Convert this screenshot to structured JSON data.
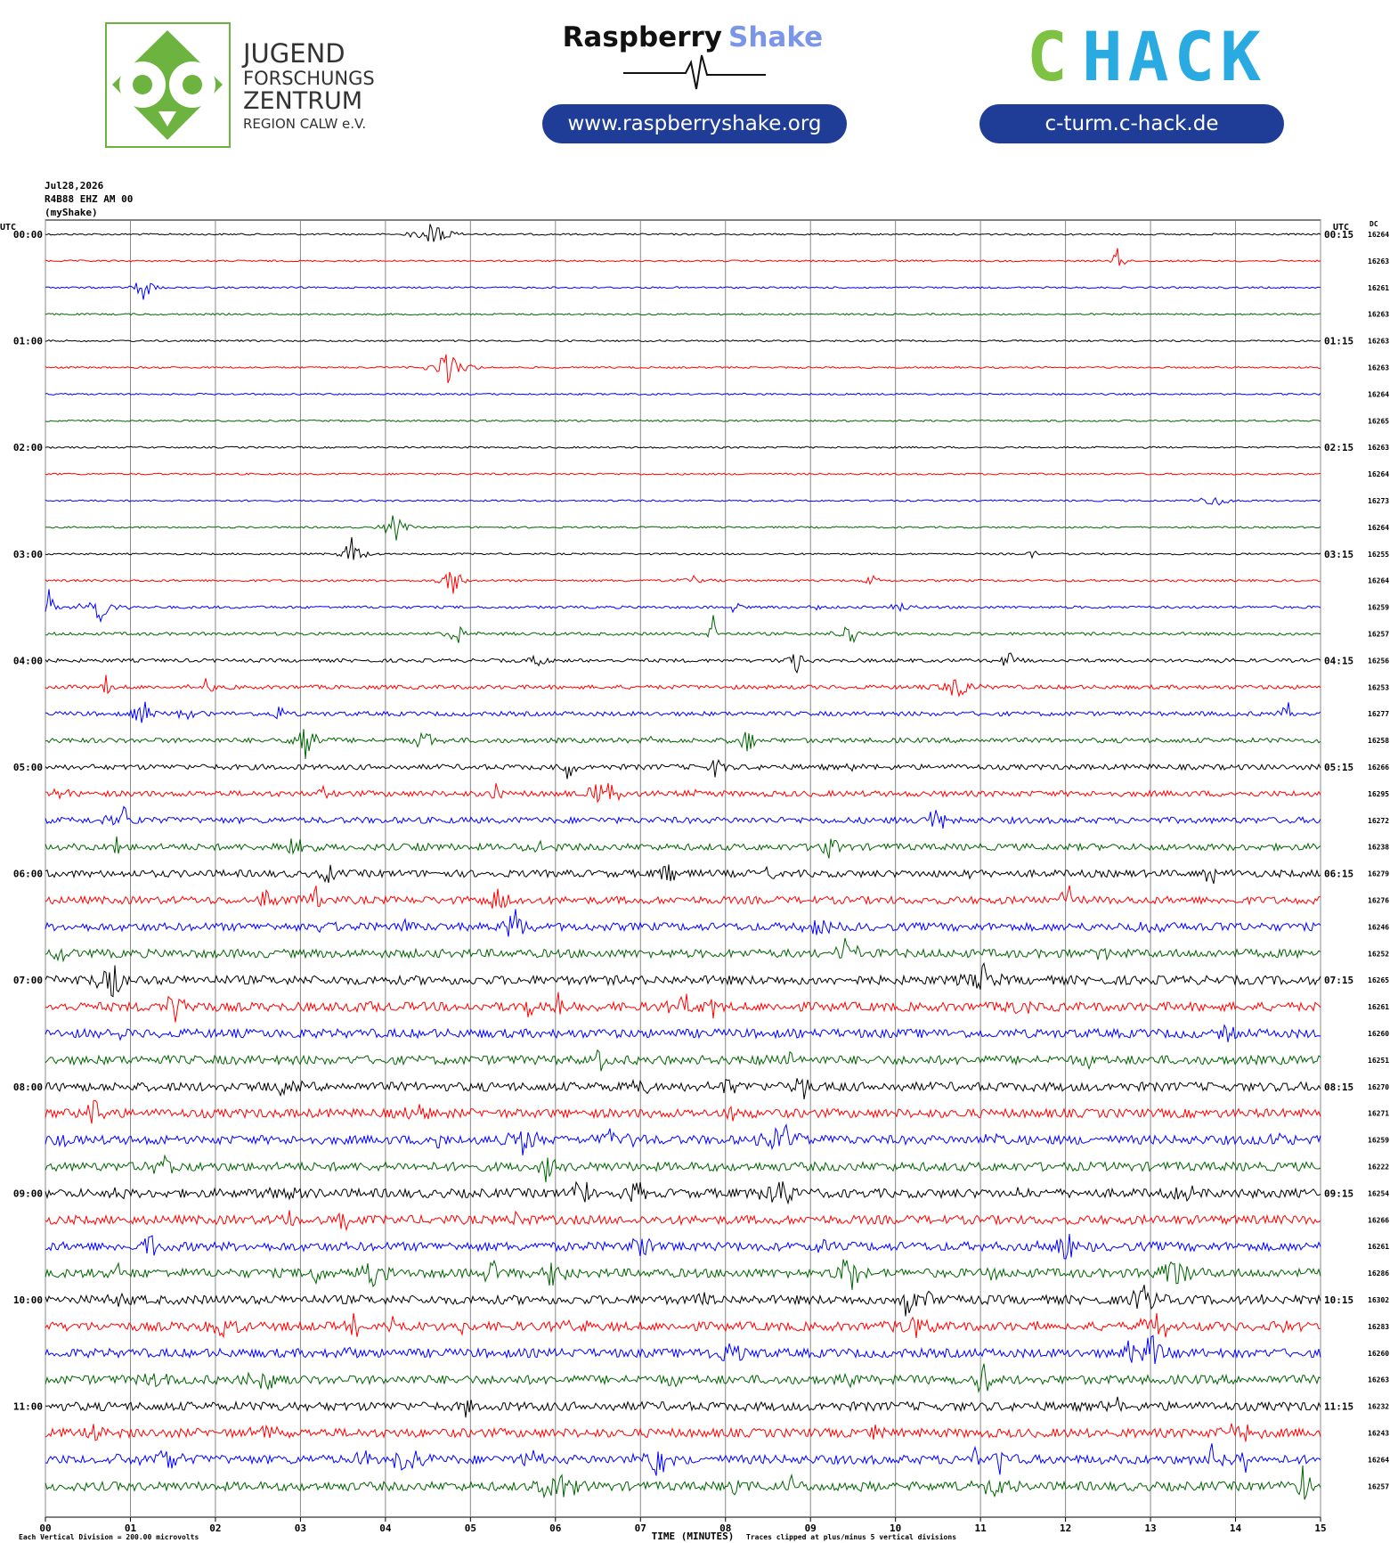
{
  "header": {
    "jfz": [
      "JUGEND",
      "FORSCHUNGS",
      "ZENTRUM",
      "REGION CALW e.V."
    ],
    "rs_name": "Raspberry",
    "rs_shake": "Shake",
    "rs_url": "www.raspberryshake.org",
    "chack_c": "C",
    "chack_rest": "HACK",
    "chack_url": "c-turm.c-hack.de"
  },
  "chart_data": {
    "type": "helicorder",
    "date": "Jul28,2026",
    "station": "R4B88 EHZ AM 00",
    "source": "(myShake)",
    "left_axis_label": "UTC",
    "right_axis_label": "UTC",
    "dc_label": "DC",
    "left_times": [
      "00:00",
      "01:00",
      "02:00",
      "03:00",
      "04:00",
      "05:00",
      "06:00",
      "07:00",
      "08:00",
      "09:00",
      "10:00",
      "11:00"
    ],
    "right_times": [
      "00:15",
      "01:15",
      "02:15",
      "03:15",
      "04:15",
      "05:15",
      "06:15",
      "07:15",
      "08:15",
      "09:15",
      "10:15",
      "11:15"
    ],
    "dc": [
      16264,
      16263,
      16261,
      16263,
      16263,
      16263,
      16264,
      16265,
      16263,
      16264,
      16273,
      16264,
      16255,
      16264,
      16259,
      16257,
      16256,
      16253,
      16277,
      16258,
      16266,
      16295,
      16272,
      16238,
      16279,
      16276,
      16246,
      16252,
      16265,
      16261,
      16260,
      16251,
      16270,
      16271,
      16259,
      16222,
      16254,
      16266,
      16261,
      16286,
      16302,
      16283,
      16260,
      16263,
      16232,
      16243,
      16264,
      16257
    ],
    "colors": [
      "#000000",
      "#ff0000",
      "#0000ff",
      "#006400"
    ],
    "xlim": [
      0,
      15
    ],
    "xticks": [
      {
        "value": 0,
        "label": "00"
      },
      {
        "value": 1,
        "label": "01"
      },
      {
        "value": 2,
        "label": "02"
      },
      {
        "value": 3,
        "label": "03"
      },
      {
        "value": 4,
        "label": "04"
      },
      {
        "value": 5,
        "label": "05"
      },
      {
        "value": 6,
        "label": "06"
      },
      {
        "value": 7,
        "label": "07"
      },
      {
        "value": 8,
        "label": "08"
      },
      {
        "value": 9,
        "label": "09"
      },
      {
        "value": 10,
        "label": "10"
      },
      {
        "value": 11,
        "label": "11"
      },
      {
        "value": 12,
        "label": "12"
      },
      {
        "value": 13,
        "label": "13"
      },
      {
        "value": 14,
        "label": "14"
      },
      {
        "value": 15,
        "label": "15"
      }
    ],
    "grid": true,
    "xlabel": "TIME (MINUTES)",
    "scale_note": "Each Vertical Division =  200.00 microvolts",
    "clip_note": "Traces clipped at plus/minus 5 vertical divisions"
  }
}
